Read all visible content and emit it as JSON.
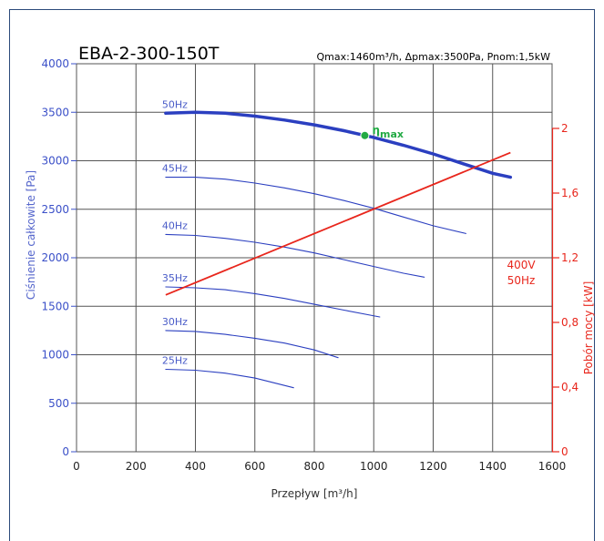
{
  "chart_data": {
    "type": "line",
    "title": "EBA-2-300-150T",
    "specs": "Qmax:1460m³/h, Δpmax:3500Pa, Pnom:1,5kW",
    "xlabel": "Przepływ [m³/h]",
    "ylabel": "Ciśnienie całkowite [Pa]",
    "y2label": "Pobór mocy [kW]",
    "xlim": [
      0,
      1600
    ],
    "ylim": [
      0,
      4000
    ],
    "y2lim": [
      0,
      2.4
    ],
    "xticks": [
      "0",
      "200",
      "400",
      "600",
      "800",
      "1000",
      "1200",
      "1400",
      "1600"
    ],
    "yticks": [
      "0",
      "500",
      "1000",
      "1500",
      "2000",
      "2500",
      "3000",
      "3500",
      "4000"
    ],
    "y2ticks": [
      "0",
      "0,4",
      "0,8",
      "1,2",
      "1,6",
      "2"
    ],
    "grid": true,
    "pressure_series": [
      {
        "name": "50Hz",
        "x": [
          300,
          400,
          500,
          600,
          700,
          800,
          900,
          1000,
          1100,
          1200,
          1300,
          1400,
          1460
        ],
        "y": [
          3490,
          3500,
          3490,
          3460,
          3420,
          3370,
          3310,
          3240,
          3160,
          3070,
          2970,
          2870,
          2830
        ]
      },
      {
        "name": "45Hz",
        "x": [
          300,
          400,
          500,
          600,
          700,
          800,
          900,
          1000,
          1100,
          1200,
          1310
        ],
        "y": [
          2830,
          2830,
          2810,
          2770,
          2720,
          2660,
          2590,
          2510,
          2420,
          2330,
          2250
        ]
      },
      {
        "name": "40Hz",
        "x": [
          300,
          400,
          500,
          600,
          700,
          800,
          900,
          1000,
          1100,
          1170
        ],
        "y": [
          2240,
          2230,
          2200,
          2160,
          2110,
          2050,
          1980,
          1910,
          1840,
          1800
        ]
      },
      {
        "name": "35Hz",
        "x": [
          300,
          400,
          500,
          600,
          700,
          800,
          900,
          1020
        ],
        "y": [
          1700,
          1690,
          1670,
          1630,
          1580,
          1520,
          1460,
          1390
        ]
      },
      {
        "name": "30Hz",
        "x": [
          300,
          400,
          500,
          600,
          700,
          800,
          880
        ],
        "y": [
          1250,
          1240,
          1210,
          1170,
          1120,
          1050,
          970
        ]
      },
      {
        "name": "25Hz",
        "x": [
          300,
          400,
          500,
          600,
          730
        ],
        "y": [
          850,
          840,
          810,
          760,
          660
        ]
      }
    ],
    "power_series": {
      "name": "400V 50Hz",
      "x": [
        300,
        1460
      ],
      "y": [
        0.97,
        1.85
      ]
    },
    "eta_max": {
      "label": "max",
      "x": 970,
      "y": 3260
    }
  },
  "colors": {
    "pressure_line": "#2b3fc0",
    "power_line": "#e8261c",
    "eta_point": "#22aa44",
    "grid": "#555555",
    "frame": "#2c4a7a"
  },
  "labels": {
    "power_voltage": "400V",
    "power_freq": "50Hz",
    "eta_symbol": "η"
  }
}
